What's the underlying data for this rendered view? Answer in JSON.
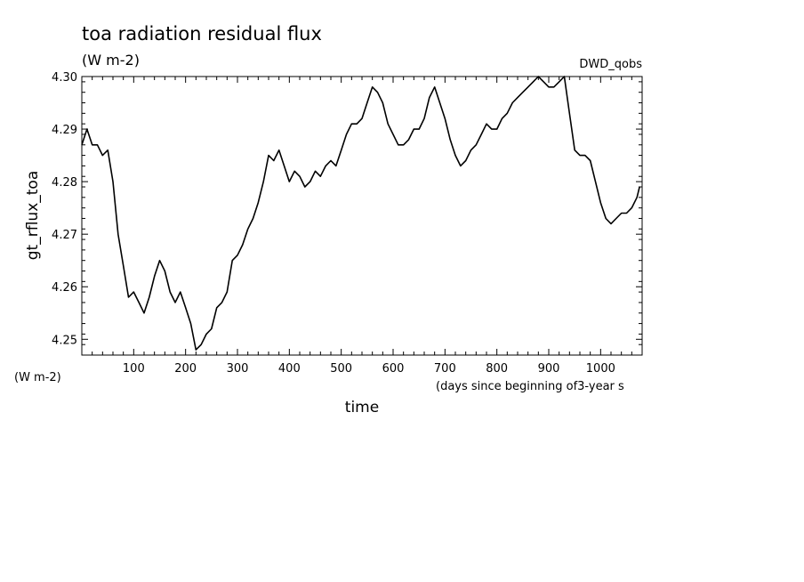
{
  "chart_data": {
    "type": "line",
    "title": "toa radiation residual flux",
    "subtitle": "(W m-2)",
    "source_label": "DWD_qobs",
    "ylabel": "gt_rflux_toa",
    "y_units": "(W m-2)",
    "xlabel": "time",
    "x_units": "(days since beginning of3-year s",
    "xlim": [
      0,
      1080
    ],
    "ylim": [
      4.247,
      4.3
    ],
    "x_ticks": [
      100,
      200,
      300,
      400,
      500,
      600,
      700,
      800,
      900,
      1000
    ],
    "y_ticks": [
      4.25,
      4.26,
      4.27,
      4.28,
      4.29,
      4.3
    ],
    "grid": false,
    "series": [
      {
        "line_color": "#000000",
        "x": [
          0,
          10,
          20,
          30,
          40,
          50,
          60,
          70,
          80,
          90,
          100,
          110,
          120,
          130,
          140,
          150,
          160,
          170,
          180,
          190,
          200,
          210,
          220,
          230,
          240,
          250,
          260,
          270,
          280,
          290,
          300,
          310,
          320,
          330,
          340,
          350,
          360,
          370,
          380,
          390,
          400,
          410,
          420,
          430,
          440,
          450,
          460,
          470,
          480,
          490,
          500,
          510,
          520,
          530,
          540,
          550,
          560,
          570,
          580,
          590,
          600,
          610,
          620,
          630,
          640,
          650,
          660,
          670,
          680,
          690,
          700,
          710,
          720,
          730,
          740,
          750,
          760,
          770,
          780,
          790,
          800,
          810,
          820,
          830,
          840,
          850,
          860,
          870,
          880,
          890,
          900,
          910,
          920,
          930,
          940,
          950,
          960,
          970,
          980,
          990,
          1000,
          1010,
          1020,
          1030,
          1040,
          1050,
          1060,
          1070,
          1075
        ],
        "y": [
          4.287,
          4.29,
          4.287,
          4.287,
          4.285,
          4.286,
          4.28,
          4.27,
          4.264,
          4.258,
          4.259,
          4.257,
          4.255,
          4.258,
          4.262,
          4.265,
          4.263,
          4.259,
          4.257,
          4.259,
          4.256,
          4.253,
          4.248,
          4.249,
          4.251,
          4.252,
          4.256,
          4.257,
          4.259,
          4.265,
          4.266,
          4.268,
          4.271,
          4.273,
          4.276,
          4.28,
          4.285,
          4.284,
          4.286,
          4.283,
          4.28,
          4.282,
          4.281,
          4.279,
          4.28,
          4.282,
          4.281,
          4.283,
          4.284,
          4.283,
          4.286,
          4.289,
          4.291,
          4.291,
          4.292,
          4.295,
          4.298,
          4.297,
          4.295,
          4.291,
          4.289,
          4.287,
          4.287,
          4.288,
          4.29,
          4.29,
          4.292,
          4.296,
          4.298,
          4.295,
          4.292,
          4.288,
          4.285,
          4.283,
          4.284,
          4.286,
          4.287,
          4.289,
          4.291,
          4.29,
          4.29,
          4.292,
          4.293,
          4.295,
          4.296,
          4.297,
          4.298,
          4.299,
          4.3,
          4.299,
          4.298,
          4.298,
          4.299,
          4.3,
          4.293,
          4.286,
          4.285,
          4.285,
          4.284,
          4.28,
          4.276,
          4.273,
          4.272,
          4.273,
          4.274,
          4.274,
          4.275,
          4.277,
          4.279
        ]
      }
    ]
  }
}
